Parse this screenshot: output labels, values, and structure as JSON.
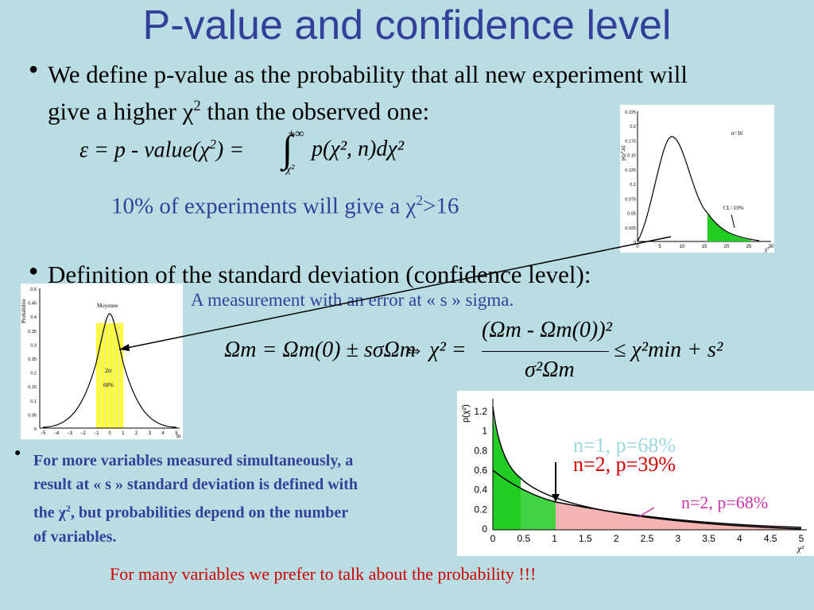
{
  "title": "P-value and confidence level",
  "bullet1_line1": "We define p-value as the probability that all new experiment will",
  "bullet1_line2_pre": "give a higher ",
  "chi": "χ",
  "sq": "2",
  "bullet1_line2_post": " than the observed one:",
  "formula1": {
    "lhs": "ε = p - value(χ",
    "sq": "2",
    "eqs": ") =",
    "integral": "∫",
    "upper": "+∞",
    "lower": "χ²",
    "body": "p(χ², n)dχ²"
  },
  "note1_pre": "10% of experiments will give a ",
  "note1_post": ">16",
  "bullet2": "Definition of the standard deviation (confidence level):",
  "subnote": "A measurement with an error at « s » sigma.",
  "formula2": {
    "lhs": "Ωm = Ωm(0) ± sσΩm",
    "iff": "⇔",
    "chi2": "χ² =",
    "num": "(Ωm - Ωm(0))²",
    "den": "σ²Ωm",
    "rhs": "≤ χ²min + s²"
  },
  "bullet3_line1": "For more variables measured simultaneously, a",
  "bullet3_line2": "result at « s » standard deviation is defined with",
  "bullet3_line3_pre": "the ",
  "bullet3_line3_post": ", but probabilities depend on the number",
  "bullet3_line4": "of variables.",
  "footer": "For many variables we prefer to talk about the probability  !!!",
  "chart_topright": {
    "ylabel": "p(χ²,n)",
    "legend": "n=16",
    "annot": "CL=10%",
    "xaxis": "χ²",
    "yticks": [
      "0.225",
      "0.2",
      "0.175",
      "0.15",
      "0.125",
      "0.1",
      "0.075",
      "0.05",
      "0.025",
      "0"
    ],
    "xticks": [
      "0",
      "5",
      "10",
      "15",
      "20",
      "25",
      "30"
    ]
  },
  "chart_left": {
    "ylabel": "Probabilite",
    "legend": "Moyenne",
    "annot1": "2σ",
    "annot2": "68%",
    "xaxis": "m",
    "yticks": [
      "0.5",
      "0.45",
      "0.4",
      "0.35",
      "0.3",
      "0.25",
      "0.2",
      "0.15",
      "0.1",
      "0.05",
      "0"
    ],
    "xticks": [
      "−5",
      "−4",
      "−3",
      "−2",
      "−1",
      "0",
      "1",
      "2",
      "3",
      "4",
      "5"
    ]
  },
  "chart_bottomright": {
    "ylabel": "p(χ²)",
    "xaxis": "χ²",
    "yticks": [
      "1.2",
      "1",
      "0.8",
      "0.6",
      "0.4",
      "0.2",
      "0"
    ],
    "xticks": [
      "0",
      "0.5",
      "1",
      "1.5",
      "2",
      "2.5",
      "3",
      "3.5",
      "4",
      "4.5",
      "5"
    ],
    "label_n1": "n=1, p=68%",
    "label_n2": "n=2, p=39%",
    "label_n2b": "n=2, p=68%"
  },
  "colors": {
    "title": "#33409a",
    "green": "#22cc22",
    "pink": "#f5b5b5",
    "yellow": "#ffff33",
    "red": "#d00000",
    "magenta": "#cc33aa",
    "cyan": "#9fd8e0"
  }
}
